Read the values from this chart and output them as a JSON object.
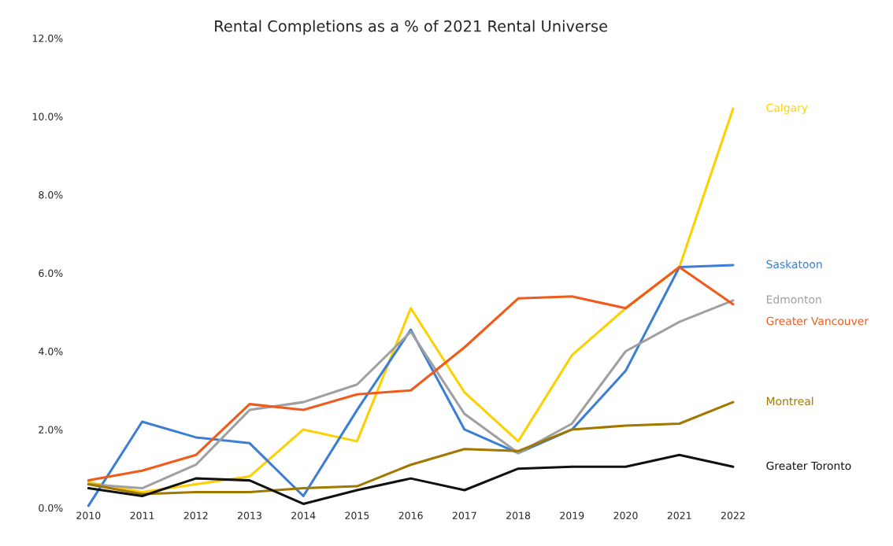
{
  "chart_data": {
    "type": "line",
    "title": "Rental Completions as a % of 2021 Rental Universe",
    "categories": [
      "2010",
      "2011",
      "2012",
      "2013",
      "2014",
      "2015",
      "2016",
      "2017",
      "2018",
      "2019",
      "2020",
      "2021",
      "2022"
    ],
    "series": [
      {
        "name": "Calgary",
        "color": "#ffd000",
        "values": [
          0.65,
          0.4,
          0.6,
          0.8,
          2.0,
          1.7,
          5.1,
          2.95,
          1.7,
          3.9,
          5.1,
          6.15,
          10.2
        ]
      },
      {
        "name": "Saskatoon",
        "color": "#3a7fd5",
        "values": [
          0.05,
          2.2,
          1.8,
          1.65,
          0.3,
          2.5,
          4.55,
          2.0,
          1.4,
          2.0,
          3.5,
          6.15,
          6.2
        ]
      },
      {
        "name": "Edmonton",
        "color": "#a0a0a0",
        "values": [
          0.6,
          0.5,
          1.1,
          2.5,
          2.7,
          3.15,
          4.5,
          2.4,
          1.4,
          2.15,
          4.0,
          4.75,
          5.3
        ]
      },
      {
        "name": "Greater Vancouver",
        "color": "#f05a1a",
        "values": [
          0.7,
          0.95,
          1.35,
          2.65,
          2.5,
          2.9,
          3.0,
          4.1,
          5.35,
          5.4,
          5.1,
          6.15,
          5.2
        ]
      },
      {
        "name": "Montreal",
        "color": "#a07800",
        "values": [
          0.6,
          0.35,
          0.4,
          0.4,
          0.5,
          0.55,
          1.1,
          1.5,
          1.45,
          2.0,
          2.1,
          2.15,
          2.7
        ]
      },
      {
        "name": "Greater Toronto",
        "color": "#111111",
        "values": [
          0.5,
          0.3,
          0.75,
          0.7,
          0.1,
          0.45,
          0.75,
          0.45,
          1.0,
          1.05,
          1.05,
          1.35,
          1.05
        ]
      }
    ],
    "ylim": [
      0,
      12
    ],
    "yticks": [
      {
        "value": 0,
        "label": "0.0%"
      },
      {
        "value": 2,
        "label": "2.0%"
      },
      {
        "value": 4,
        "label": "4.0%"
      },
      {
        "value": 6,
        "label": "6.0%"
      },
      {
        "value": 8,
        "label": "8.0%"
      },
      {
        "value": 10,
        "label": "10.0%"
      },
      {
        "value": 12,
        "label": "12.0%"
      }
    ],
    "grid": false,
    "marker": "none",
    "line_style": "solid"
  }
}
